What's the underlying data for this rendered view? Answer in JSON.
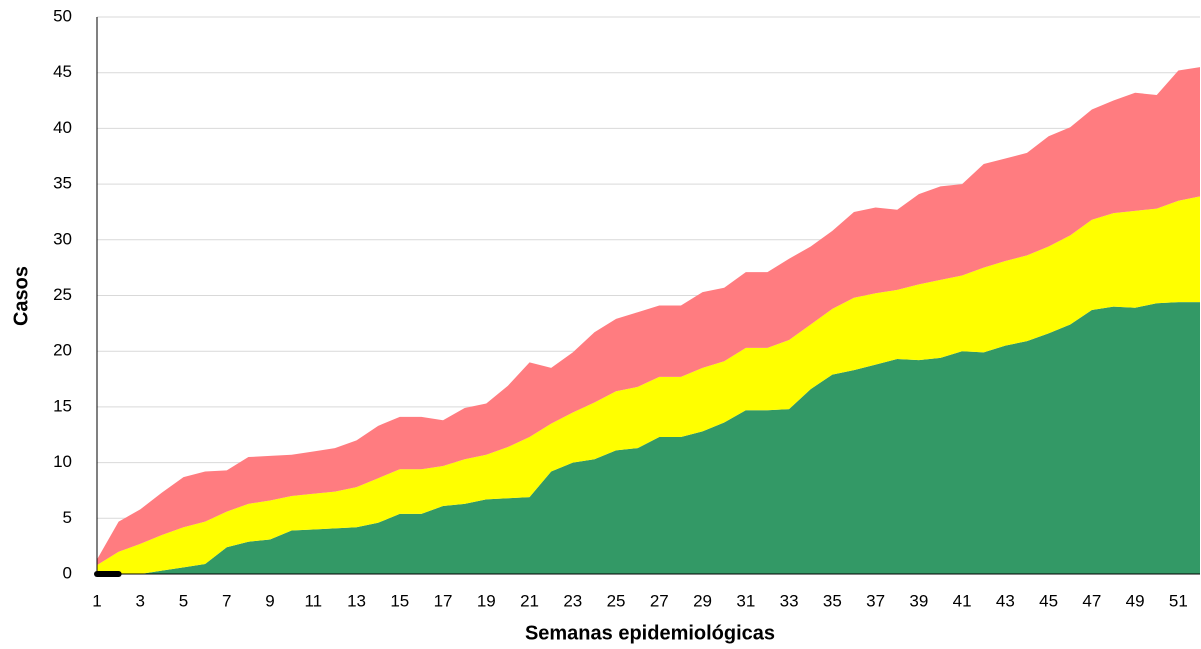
{
  "chart_data": {
    "type": "stacked_area",
    "xlabel": "Semanas epidemiológicas",
    "ylabel": "Casos",
    "categories": [
      1,
      null,
      3,
      null,
      5,
      null,
      7,
      null,
      9,
      null,
      11,
      null,
      13,
      null,
      15,
      null,
      17,
      null,
      19,
      null,
      21,
      null,
      23,
      null,
      25,
      null,
      27,
      null,
      29,
      null,
      31,
      null,
      33,
      null,
      35,
      null,
      37,
      null,
      39,
      null,
      41,
      null,
      43,
      null,
      45,
      null,
      47,
      null,
      49,
      null,
      51,
      null
    ],
    "series": [
      {
        "color": "#339966",
        "values": [
          0,
          0,
          0,
          0.3,
          0.6,
          0.9,
          2.4,
          2.9,
          3.1,
          3.9,
          4.0,
          4.1,
          4.2,
          4.6,
          5.4,
          5.4,
          6.1,
          6.3,
          6.7,
          6.8,
          6.9,
          9.2,
          10.0,
          10.3,
          11.1,
          11.3,
          12.3,
          12.3,
          12.8,
          13.6,
          14.7,
          14.7,
          14.8,
          16.6,
          17.9,
          18.3,
          18.8,
          19.3,
          19.2,
          19.4,
          20.0,
          19.9,
          20.5,
          20.9,
          21.6,
          22.4,
          23.7,
          24.0,
          23.9,
          24.3,
          24.4,
          24.4
        ]
      },
      {
        "color": "#ffff00",
        "values": [
          0.8,
          2.0,
          2.7,
          3.2,
          3.6,
          3.8,
          3.2,
          3.4,
          3.5,
          3.1,
          3.2,
          3.3,
          3.6,
          4.0,
          4.0,
          4.0,
          3.6,
          4.0,
          4.0,
          4.6,
          5.4,
          4.3,
          4.5,
          5.1,
          5.3,
          5.5,
          5.4,
          5.4,
          5.7,
          5.5,
          5.6,
          5.6,
          6.2,
          5.8,
          5.9,
          6.5,
          6.4,
          6.2,
          6.8,
          7.0,
          6.8,
          7.6,
          7.6,
          7.7,
          7.8,
          8.0,
          8.1,
          8.4,
          8.7,
          8.5,
          9.1,
          9.5
        ]
      },
      {
        "color": "#ff7c80",
        "values": [
          0.5,
          2.7,
          3.1,
          3.8,
          4.5,
          4.5,
          3.7,
          4.2,
          4.0,
          3.7,
          3.8,
          3.9,
          4.2,
          4.7,
          4.7,
          4.7,
          4.1,
          4.6,
          4.6,
          5.5,
          6.7,
          5.0,
          5.4,
          6.3,
          6.5,
          6.7,
          6.4,
          6.4,
          6.8,
          6.6,
          6.8,
          6.8,
          7.3,
          7.0,
          7.0,
          7.7,
          7.7,
          7.2,
          8.1,
          8.4,
          8.2,
          9.3,
          9.2,
          9.2,
          9.9,
          9.7,
          9.9,
          10.1,
          10.6,
          10.2,
          11.7,
          11.6
        ]
      },
      {
        "type": "line",
        "color": "#000000",
        "values": [
          0,
          0,
          null,
          null,
          null,
          null,
          null,
          null,
          null,
          null,
          null,
          null,
          null,
          null,
          null,
          null,
          null,
          null,
          null,
          null,
          null,
          null,
          null,
          null,
          null,
          null,
          null,
          null,
          null,
          null,
          null,
          null,
          null,
          null,
          null,
          null,
          null,
          null,
          null,
          null,
          null,
          null,
          null,
          null,
          null,
          null,
          null,
          null,
          null,
          null,
          null,
          null
        ]
      }
    ],
    "ylim": [
      0,
      50
    ],
    "yticks": [
      0,
      5,
      10,
      15,
      20,
      25,
      30,
      35,
      40,
      45,
      50
    ],
    "grid": true
  }
}
